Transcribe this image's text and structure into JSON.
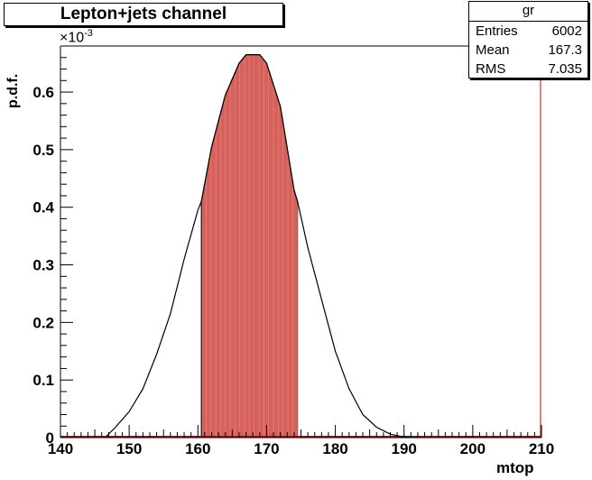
{
  "title": "Lepton+jets channel",
  "stats": {
    "name": "gr",
    "rows": [
      {
        "label": "Entries",
        "value": "6002"
      },
      {
        "label": "Mean",
        "value": "167.3"
      },
      {
        "label": "RMS",
        "value": "7.035"
      }
    ]
  },
  "axis_multiplier": "×10",
  "axis_multiplier_exp": "-3",
  "colors": {
    "fill": "#d6605a",
    "fill_line": "#e88a84",
    "frame": "#000000",
    "edge": "#cc0000"
  },
  "chart_data": {
    "type": "area",
    "title": "Lepton+jets channel",
    "xlabel": "mtop",
    "ylabel": "p.d.f.",
    "xlim": [
      140,
      210
    ],
    "ylim": [
      0,
      0.00068
    ],
    "xticks": [
      "140",
      "150",
      "160",
      "170",
      "180",
      "190",
      "200",
      "210"
    ],
    "yticks": [
      "0",
      "0.1",
      "0.2",
      "0.3",
      "0.4",
      "0.5",
      "0.6"
    ],
    "shaded_interval": [
      160.5,
      174.5
    ],
    "x": [
      146.5,
      148,
      150,
      152,
      154,
      156,
      158,
      160,
      160.5,
      162,
      164,
      166,
      167,
      168,
      169,
      170,
      172,
      174,
      174.5,
      176,
      178,
      180,
      182,
      184,
      186,
      188,
      190,
      192
    ],
    "y": [
      0.0,
      1.8e-05,
      4.5e-05,
      8.5e-05,
      0.000145,
      0.000215,
      0.00031,
      0.000395,
      0.00041,
      0.000505,
      0.000595,
      0.00065,
      0.000665,
      0.000665,
      0.000665,
      0.00065,
      0.000575,
      0.00043,
      0.00041,
      0.00033,
      0.00024,
      0.00015,
      8.5e-05,
      4e-05,
      1.8e-05,
      6e-06,
      1e-06,
      0.0
    ]
  }
}
